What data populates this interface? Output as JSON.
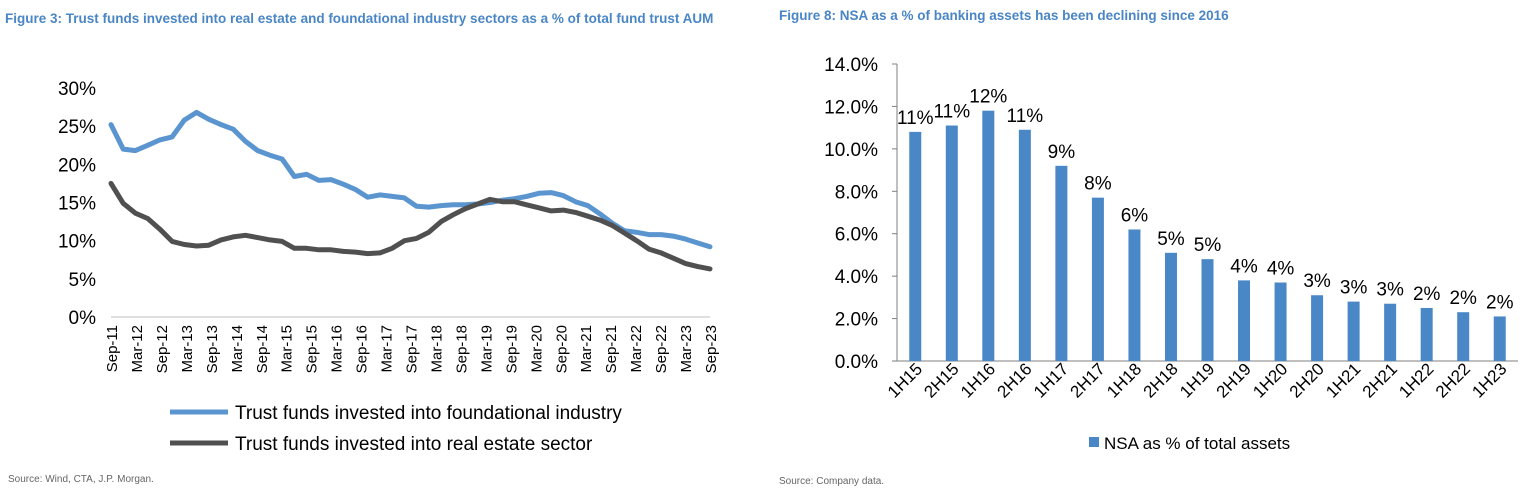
{
  "colors": {
    "title": "#4a86c5",
    "foundational": "#5b95cf",
    "realestate": "#505050",
    "bar": "#4a87c6",
    "text": "#000000",
    "source": "#666666",
    "grid": "#d9d9d9"
  },
  "figures": [
    {
      "title": "Figure 3: Trust funds invested into real estate and foundational industry sectors as a % of total fund trust AUM",
      "source": "Source: Wind, CTA, J.P. Morgan."
    },
    {
      "title": "Figure 8: NSA as a % of banking assets has been declining since 2016",
      "source": "Source: Company data."
    }
  ],
  "chart_data": [
    {
      "type": "line",
      "title": "Trust funds invested into real estate and foundational industry sectors as a % of total fund trust AUM",
      "ylim": [
        0,
        30
      ],
      "yticks": [
        "0%",
        "5%",
        "10%",
        "15%",
        "20%",
        "25%",
        "30%"
      ],
      "x_labels": [
        "Sep-11",
        "Mar-12",
        "Sep-12",
        "Mar-13",
        "Sep-13",
        "Mar-14",
        "Sep-14",
        "Mar-15",
        "Sep-15",
        "Mar-16",
        "Sep-16",
        "Mar-17",
        "Sep-17",
        "Mar-18",
        "Sep-18",
        "Mar-19",
        "Sep-19",
        "Mar-20",
        "Sep-20",
        "Mar-21",
        "Sep-21",
        "Mar-22",
        "Sep-22",
        "Mar-23",
        "Sep-23"
      ],
      "series": [
        {
          "name": "Trust funds invested into foundational industry",
          "key": "foundational",
          "values": [
            25.2,
            22.0,
            21.8,
            22.5,
            23.2,
            23.6,
            25.8,
            26.8,
            25.9,
            25.2,
            24.6,
            23.0,
            21.8,
            21.2,
            20.7,
            18.4,
            18.7,
            17.9,
            18.0,
            17.4,
            16.7,
            15.7,
            16.0,
            15.8,
            15.6,
            14.5,
            14.4,
            14.6,
            14.7,
            14.7,
            14.8,
            15.0,
            15.3,
            15.5,
            15.8,
            16.2,
            16.3,
            15.9,
            15.1,
            14.6,
            13.5,
            12.3,
            11.3,
            11.1,
            10.8,
            10.8,
            10.6,
            10.2,
            9.7,
            9.2
          ]
        },
        {
          "name": "Trust funds invested into real estate sector",
          "key": "realestate",
          "values": [
            17.5,
            14.9,
            13.6,
            12.9,
            11.5,
            9.9,
            9.5,
            9.3,
            9.4,
            10.1,
            10.5,
            10.7,
            10.4,
            10.1,
            9.9,
            9.0,
            9.0,
            8.8,
            8.8,
            8.6,
            8.5,
            8.3,
            8.4,
            9.0,
            10.0,
            10.3,
            11.1,
            12.5,
            13.4,
            14.2,
            14.8,
            15.4,
            15.1,
            15.1,
            14.7,
            14.3,
            13.9,
            14.0,
            13.7,
            13.2,
            12.7,
            12.0,
            11.0,
            10.0,
            8.9,
            8.4,
            7.7,
            7.0,
            6.6,
            6.3
          ]
        }
      ],
      "legend_position": "bottom"
    },
    {
      "type": "bar",
      "title": "NSA as a % of banking assets has been declining since 2016",
      "categories": [
        "1H15",
        "2H15",
        "1H16",
        "2H16",
        "1H17",
        "2H17",
        "1H18",
        "2H18",
        "1H19",
        "2H19",
        "1H20",
        "2H20",
        "1H21",
        "2H21",
        "1H22",
        "2H22",
        "1H23"
      ],
      "values": [
        10.8,
        11.1,
        11.8,
        10.9,
        9.2,
        7.7,
        6.2,
        5.1,
        4.8,
        3.8,
        3.7,
        3.1,
        2.8,
        2.7,
        2.5,
        2.3,
        2.1
      ],
      "data_labels": [
        "11%",
        "11%",
        "12%",
        "11%",
        "9%",
        "8%",
        "6%",
        "5%",
        "5%",
        "4%",
        "4%",
        "3%",
        "3%",
        "3%",
        "2%",
        "2%",
        "2%"
      ],
      "ylim": [
        0,
        14
      ],
      "yticks": [
        "0.0%",
        "2.0%",
        "4.0%",
        "6.0%",
        "8.0%",
        "10.0%",
        "12.0%",
        "14.0%"
      ],
      "legend": "NSA as % of total assets",
      "legend_position": "bottom"
    }
  ]
}
